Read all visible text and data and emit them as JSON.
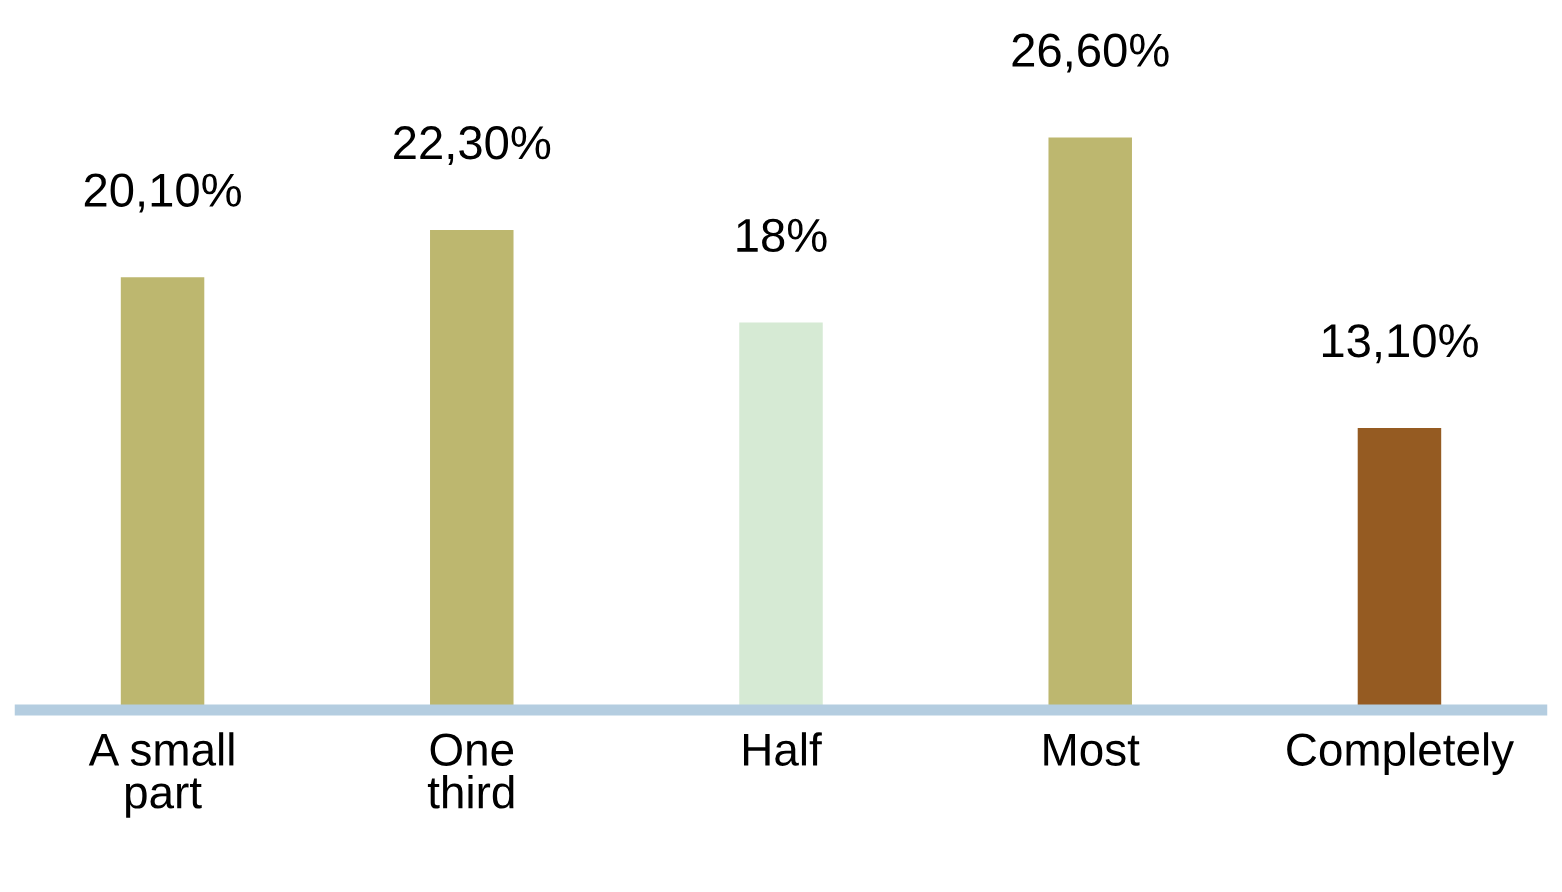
{
  "chart_data": {
    "type": "bar",
    "categories": [
      "A small\npart",
      "One\nthird",
      "Half",
      "Most",
      "Completely"
    ],
    "values": [
      20.1,
      22.3,
      18,
      26.6,
      13.1
    ],
    "colors": [
      "#bdb76f",
      "#bdb76f",
      "#d6ead4",
      "#bdb76f",
      "#955b22"
    ],
    "value_labels": [
      "20,10%",
      "22,30%",
      "18%",
      "26,60%",
      "13,10%"
    ],
    "grid": false,
    "legend": false
  }
}
